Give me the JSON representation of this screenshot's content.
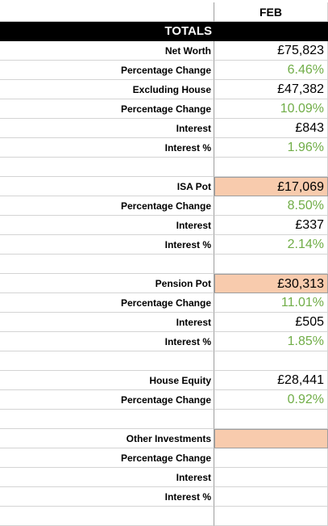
{
  "header": {
    "month": "FEB"
  },
  "totals_title": "TOTALS",
  "rows": [
    {
      "label": "Net Worth",
      "value": "£75,823",
      "style": "plain"
    },
    {
      "label": "Percentage Change",
      "value": "6.46%",
      "style": "green"
    },
    {
      "label": "Excluding House",
      "value": "£47,382",
      "style": "plain"
    },
    {
      "label": "Percentage Change",
      "value": "10.09%",
      "style": "green"
    },
    {
      "label": "Interest",
      "value": "£843",
      "style": "plain"
    },
    {
      "label": "Interest %",
      "value": "1.96%",
      "style": "green"
    },
    {
      "label": "",
      "value": "",
      "style": "plain"
    },
    {
      "label": "ISA Pot",
      "value": "£17,069",
      "style": "highlight"
    },
    {
      "label": "Percentage Change",
      "value": "8.50%",
      "style": "green"
    },
    {
      "label": "Interest",
      "value": "£337",
      "style": "plain"
    },
    {
      "label": "Interest %",
      "value": "2.14%",
      "style": "green"
    },
    {
      "label": "",
      "value": "",
      "style": "plain"
    },
    {
      "label": "Pension Pot",
      "value": "£30,313",
      "style": "highlight"
    },
    {
      "label": "Percentage Change",
      "value": "11.01%",
      "style": "green"
    },
    {
      "label": "Interest",
      "value": "£505",
      "style": "plain"
    },
    {
      "label": "Interest %",
      "value": "1.85%",
      "style": "green"
    },
    {
      "label": "",
      "value": "",
      "style": "plain"
    },
    {
      "label": "House Equity",
      "value": "£28,441",
      "style": "plain"
    },
    {
      "label": "Percentage Change",
      "value": "0.92%",
      "style": "green"
    },
    {
      "label": "",
      "value": "",
      "style": "plain"
    },
    {
      "label": "Other Investments",
      "value": "",
      "style": "highlight"
    },
    {
      "label": "Percentage Change",
      "value": "",
      "style": "plain"
    },
    {
      "label": "Interest",
      "value": "",
      "style": "plain"
    },
    {
      "label": "Interest %",
      "value": "",
      "style": "plain"
    },
    {
      "label": "",
      "value": "",
      "style": "plain"
    }
  ],
  "colors": {
    "positive": "#70ad47",
    "highlight": "#f8cbad",
    "header_bg": "#000000"
  }
}
